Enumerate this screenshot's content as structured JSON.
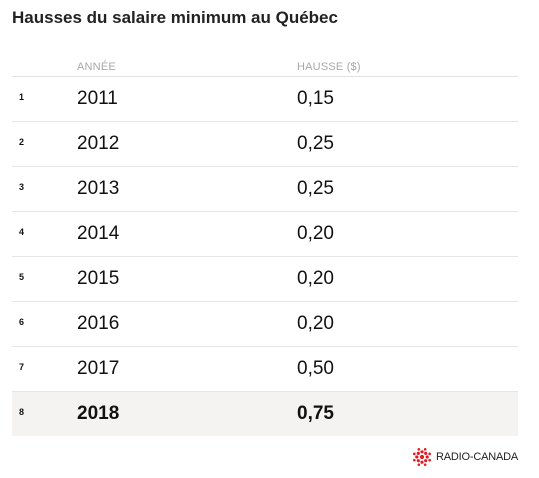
{
  "chart_data": {
    "type": "table",
    "title": "Hausses du salaire minimum au Québec",
    "columns": [
      "ANNÉE",
      "HAUSSE ($)"
    ],
    "rows": [
      {
        "rank": "1",
        "year": "2011",
        "increase": "0,15"
      },
      {
        "rank": "2",
        "year": "2012",
        "increase": "0,25"
      },
      {
        "rank": "3",
        "year": "2013",
        "increase": "0,25"
      },
      {
        "rank": "4",
        "year": "2014",
        "increase": "0,20"
      },
      {
        "rank": "5",
        "year": "2015",
        "increase": "0,20"
      },
      {
        "rank": "6",
        "year": "2016",
        "increase": "0,20"
      },
      {
        "rank": "7",
        "year": "2017",
        "increase": "0,50"
      },
      {
        "rank": "8",
        "year": "2018",
        "increase": "0,75"
      }
    ],
    "highlighted_row": 8
  },
  "brand": {
    "name": "RADIO-CANADA",
    "icon": "radio-canada-gem-icon",
    "color": "#e31b23"
  }
}
